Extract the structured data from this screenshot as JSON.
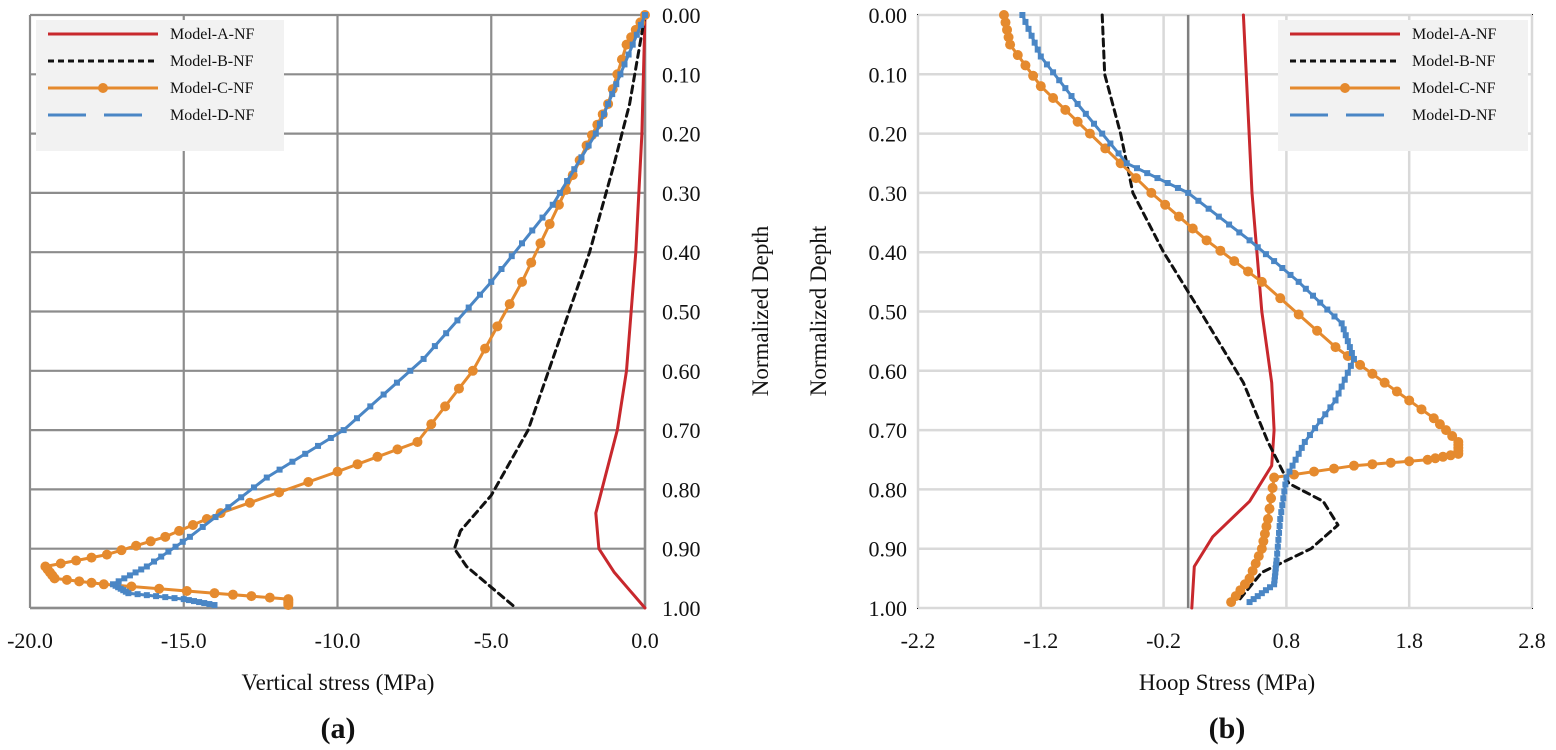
{
  "chart_data": [
    {
      "id": "a",
      "type": "line",
      "panel_label": "(a)",
      "xlabel": "Vertical stress (MPa)",
      "ylabel": "Normalized Depth",
      "xlim": [
        -20,
        0
      ],
      "ylim": [
        0,
        1
      ],
      "y_inverted": true,
      "y_axis_side": "right",
      "x_ticks": [
        "-20.0",
        "-15.0",
        "-10.0",
        "-5.0",
        "0.0"
      ],
      "y_ticks": [
        "0.00",
        "0.10",
        "0.20",
        "0.30",
        "0.40",
        "0.50",
        "0.60",
        "0.70",
        "0.80",
        "0.90",
        "1.00"
      ],
      "grid": true,
      "legend_position": "top-left",
      "series": [
        {
          "name": "Model-A-NF",
          "color": "#c8282d",
          "style": "solid",
          "points": [
            [
              0,
              0
            ],
            [
              -0.1,
              0.2
            ],
            [
              -0.3,
              0.4
            ],
            [
              -0.6,
              0.6
            ],
            [
              -0.9,
              0.7
            ],
            [
              -1.3,
              0.78
            ],
            [
              -1.6,
              0.84
            ],
            [
              -1.5,
              0.9
            ],
            [
              -1.0,
              0.94
            ],
            [
              -0.5,
              0.97
            ],
            [
              0,
              1
            ]
          ]
        },
        {
          "name": "Model-B-NF",
          "color": "#111111",
          "style": "dashed",
          "points": [
            [
              0,
              0
            ],
            [
              -0.5,
              0.15
            ],
            [
              -1.0,
              0.25
            ],
            [
              -1.8,
              0.4
            ],
            [
              -2.8,
              0.55
            ],
            [
              -3.8,
              0.7
            ],
            [
              -5.0,
              0.81
            ],
            [
              -6.0,
              0.87
            ],
            [
              -6.2,
              0.9
            ],
            [
              -5.8,
              0.93
            ],
            [
              -4.2,
              1.0
            ]
          ]
        },
        {
          "name": "Model-C-NF",
          "color": "#e58a2e",
          "style": "dotted-markers",
          "points": [
            [
              0,
              0
            ],
            [
              -0.6,
              0.05
            ],
            [
              -1.2,
              0.15
            ],
            [
              -1.9,
              0.22
            ],
            [
              -2.8,
              0.32
            ],
            [
              -4.0,
              0.45
            ],
            [
              -5.6,
              0.6
            ],
            [
              -7.4,
              0.72
            ],
            [
              -10.0,
              0.77
            ],
            [
              -13.8,
              0.84
            ],
            [
              -15.6,
              0.88
            ],
            [
              -17.5,
              0.91
            ],
            [
              -19.5,
              0.93
            ],
            [
              -19.2,
              0.95
            ],
            [
              -17.6,
              0.96
            ],
            [
              -14.0,
              0.975
            ],
            [
              -11.6,
              0.985
            ],
            [
              -11.6,
              0.995
            ]
          ]
        },
        {
          "name": "Model-D-NF",
          "color": "#4a86c5",
          "style": "long-dash-markers",
          "points": [
            [
              0,
              0
            ],
            [
              -0.8,
              0.1
            ],
            [
              -1.6,
              0.2
            ],
            [
              -3.0,
              0.32
            ],
            [
              -5.0,
              0.45
            ],
            [
              -7.2,
              0.58
            ],
            [
              -9.8,
              0.7
            ],
            [
              -12.3,
              0.78
            ],
            [
              -14.8,
              0.88
            ],
            [
              -16.2,
              0.93
            ],
            [
              -17.3,
              0.96
            ],
            [
              -16.8,
              0.975
            ],
            [
              -15.0,
              0.985
            ],
            [
              -14.0,
              0.995
            ]
          ]
        }
      ]
    },
    {
      "id": "b",
      "type": "line",
      "panel_label": "(b)",
      "xlabel": "Hoop Stress (MPa)",
      "ylabel": "Normalized Depht",
      "xlim": [
        -2.2,
        2.8
      ],
      "ylim": [
        0,
        1
      ],
      "y_inverted": true,
      "y_axis_side": "left",
      "x_ticks": [
        "-2.2",
        "-1.2",
        "-0.2",
        "0.8",
        "1.8",
        "2.8"
      ],
      "y_ticks": [
        "0.00",
        "0.10",
        "0.20",
        "0.30",
        "0.40",
        "0.50",
        "0.60",
        "0.70",
        "0.80",
        "0.90",
        "1.00"
      ],
      "grid": true,
      "zero_line": 0,
      "legend_position": "top-right",
      "series": [
        {
          "name": "Model-A-NF",
          "color": "#c8282d",
          "style": "solid",
          "points": [
            [
              0.45,
              0
            ],
            [
              0.52,
              0.3
            ],
            [
              0.6,
              0.5
            ],
            [
              0.68,
              0.62
            ],
            [
              0.7,
              0.7
            ],
            [
              0.68,
              0.76
            ],
            [
              0.5,
              0.82
            ],
            [
              0.2,
              0.88
            ],
            [
              0.05,
              0.93
            ],
            [
              0.03,
              1.0
            ]
          ]
        },
        {
          "name": "Model-B-NF",
          "color": "#111111",
          "style": "dashed",
          "points": [
            [
              -0.7,
              0
            ],
            [
              -0.68,
              0.1
            ],
            [
              -0.55,
              0.2
            ],
            [
              -0.45,
              0.3
            ],
            [
              -0.2,
              0.4
            ],
            [
              0.1,
              0.5
            ],
            [
              0.45,
              0.62
            ],
            [
              0.65,
              0.72
            ],
            [
              0.82,
              0.79
            ],
            [
              1.1,
              0.82
            ],
            [
              1.22,
              0.86
            ],
            [
              1.0,
              0.9
            ],
            [
              0.6,
              0.94
            ],
            [
              0.4,
              0.99
            ]
          ]
        },
        {
          "name": "Model-C-NF",
          "color": "#e58a2e",
          "style": "dotted-markers",
          "points": [
            [
              -1.5,
              0
            ],
            [
              -1.45,
              0.05
            ],
            [
              -1.2,
              0.12
            ],
            [
              -0.8,
              0.2
            ],
            [
              -0.3,
              0.3
            ],
            [
              0.15,
              0.38
            ],
            [
              0.6,
              0.45
            ],
            [
              1.2,
              0.56
            ],
            [
              1.6,
              0.62
            ],
            [
              2.0,
              0.68
            ],
            [
              2.2,
              0.72
            ],
            [
              2.2,
              0.74
            ],
            [
              1.95,
              0.75
            ],
            [
              1.35,
              0.76
            ],
            [
              0.7,
              0.78
            ],
            [
              0.65,
              0.85
            ],
            [
              0.6,
              0.9
            ],
            [
              0.5,
              0.95
            ],
            [
              0.35,
              0.99
            ]
          ]
        },
        {
          "name": "Model-D-NF",
          "color": "#4a86c5",
          "style": "long-dash-markers",
          "points": [
            [
              -1.35,
              0
            ],
            [
              -1.2,
              0.07
            ],
            [
              -0.9,
              0.15
            ],
            [
              -0.5,
              0.25
            ],
            [
              0.0,
              0.3
            ],
            [
              0.5,
              0.38
            ],
            [
              0.9,
              0.45
            ],
            [
              1.25,
              0.52
            ],
            [
              1.35,
              0.58
            ],
            [
              1.2,
              0.65
            ],
            [
              0.95,
              0.72
            ],
            [
              0.8,
              0.78
            ],
            [
              0.75,
              0.85
            ],
            [
              0.72,
              0.92
            ],
            [
              0.7,
              0.96
            ],
            [
              0.5,
              0.99
            ]
          ]
        }
      ]
    }
  ]
}
